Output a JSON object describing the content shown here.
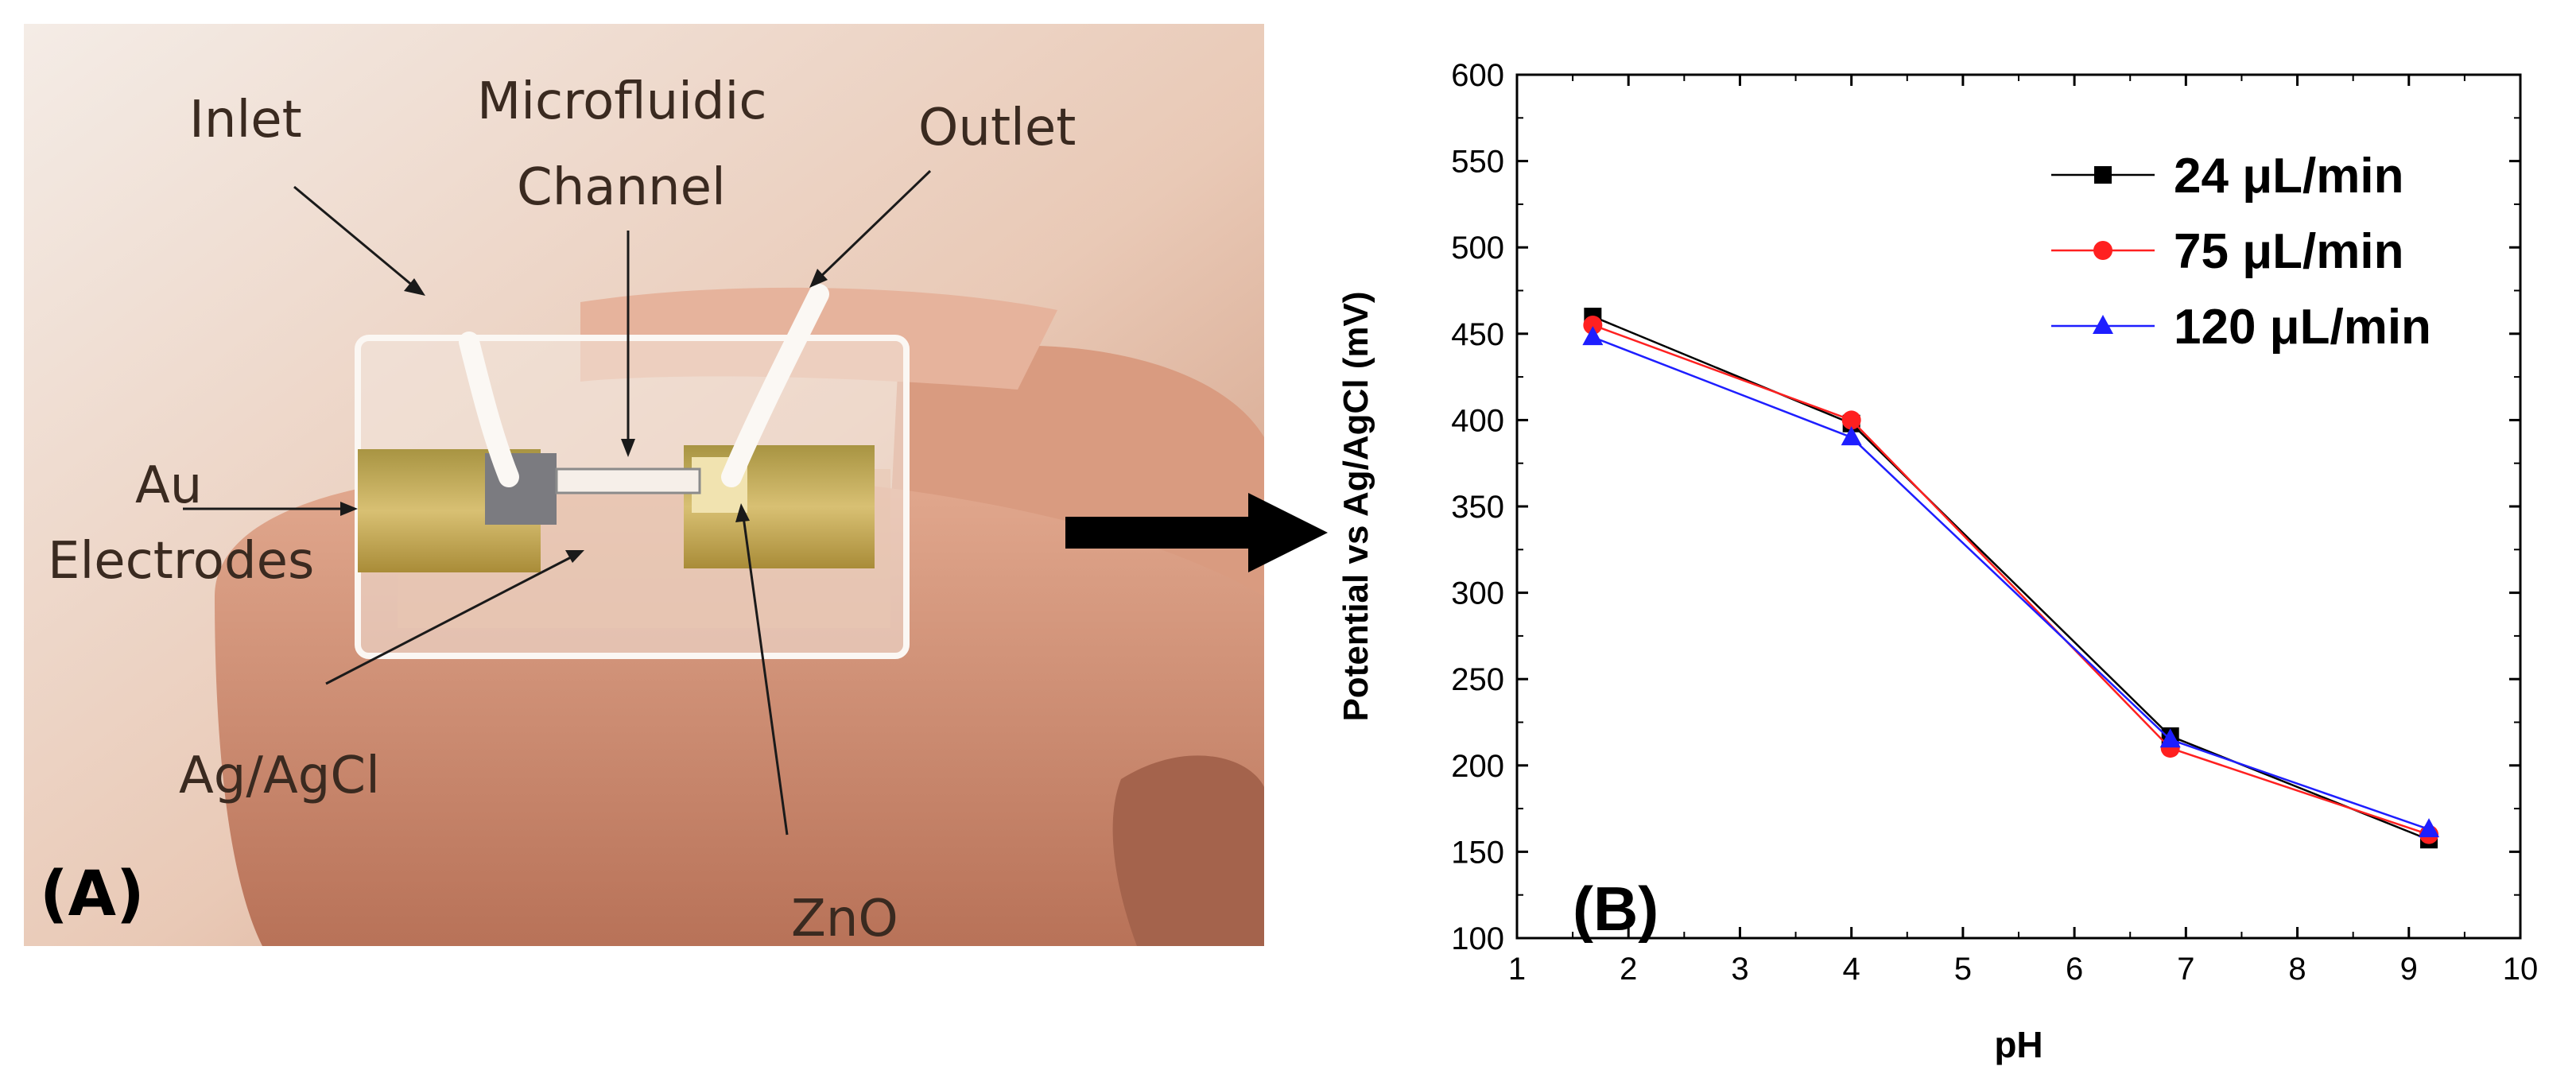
{
  "panel_a": {
    "letter": "(A)",
    "labels": {
      "inlet": "Inlet",
      "microfluidic": "Microfluidic",
      "channel": "Channel",
      "outlet": "Outlet",
      "au": "Au",
      "electrodes": "Electrodes",
      "agagcl": "Ag/AgCl",
      "zno": "ZnO"
    }
  },
  "panel_b": {
    "letter": "(B)"
  },
  "colors": {
    "series_24": "#000000",
    "series_75": "#ff2020",
    "series_120": "#1e1eff",
    "arrow": "#000000"
  },
  "chart_data": {
    "type": "line",
    "xlabel": "pH",
    "ylabel": "Potential vs Ag/AgCl (mV)",
    "xlim": [
      1,
      10
    ],
    "ylim": [
      100,
      600
    ],
    "x_ticks": [
      "1",
      "2",
      "3",
      "4",
      "5",
      "6",
      "7",
      "8",
      "9",
      "10"
    ],
    "y_ticks": [
      "100",
      "150",
      "200",
      "250",
      "300",
      "350",
      "400",
      "450",
      "500",
      "550",
      "600"
    ],
    "legend_position": "top-right",
    "series": [
      {
        "name": "24 μL/min",
        "marker": "square",
        "color": "#000000",
        "x": [
          1.68,
          4.0,
          6.86,
          9.18
        ],
        "y": [
          460,
          398,
          217,
          157
        ]
      },
      {
        "name": "75 μL/min",
        "marker": "circle",
        "color": "#ff2020",
        "x": [
          1.68,
          4.0,
          6.86,
          9.18
        ],
        "y": [
          455,
          400,
          210,
          160
        ]
      },
      {
        "name": "120 μL/min",
        "marker": "triangle",
        "color": "#1e1eff",
        "x": [
          1.68,
          4.0,
          6.86,
          9.18
        ],
        "y": [
          448,
          390,
          215,
          163
        ]
      }
    ]
  }
}
